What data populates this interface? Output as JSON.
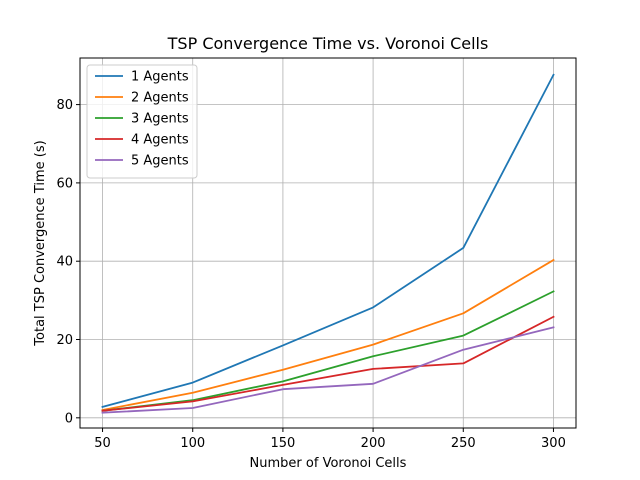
{
  "chart_data": {
    "type": "line",
    "title": "TSP Convergence Time vs. Voronoi Cells",
    "xlabel": "Number of Voronoi Cells",
    "ylabel": "Total TSP Convergence Time (s)",
    "xlim": [
      37.5,
      312.5
    ],
    "ylim": [
      -2.6,
      91.9
    ],
    "xticks": [
      50,
      100,
      150,
      200,
      250,
      300
    ],
    "yticks": [
      0,
      20,
      40,
      60,
      80
    ],
    "grid": true,
    "legend_position": "top-left",
    "x": [
      50,
      100,
      150,
      200,
      250,
      300
    ],
    "series": [
      {
        "name": "1 Agents",
        "color": "#1f77b4",
        "values": [
          2.8,
          9.0,
          18.5,
          28.2,
          43.4,
          87.6
        ]
      },
      {
        "name": "2 Agents",
        "color": "#ff7f0e",
        "values": [
          2.0,
          6.4,
          12.3,
          18.7,
          26.7,
          40.3
        ]
      },
      {
        "name": "3 Agents",
        "color": "#2ca02c",
        "values": [
          1.8,
          4.5,
          9.3,
          15.7,
          21.0,
          32.3
        ]
      },
      {
        "name": "4 Agents",
        "color": "#d62728",
        "values": [
          1.8,
          4.2,
          8.4,
          12.5,
          13.9,
          25.8
        ]
      },
      {
        "name": "5 Agents",
        "color": "#9467bd",
        "values": [
          1.3,
          2.5,
          7.3,
          8.7,
          17.4,
          23.1
        ]
      }
    ]
  }
}
